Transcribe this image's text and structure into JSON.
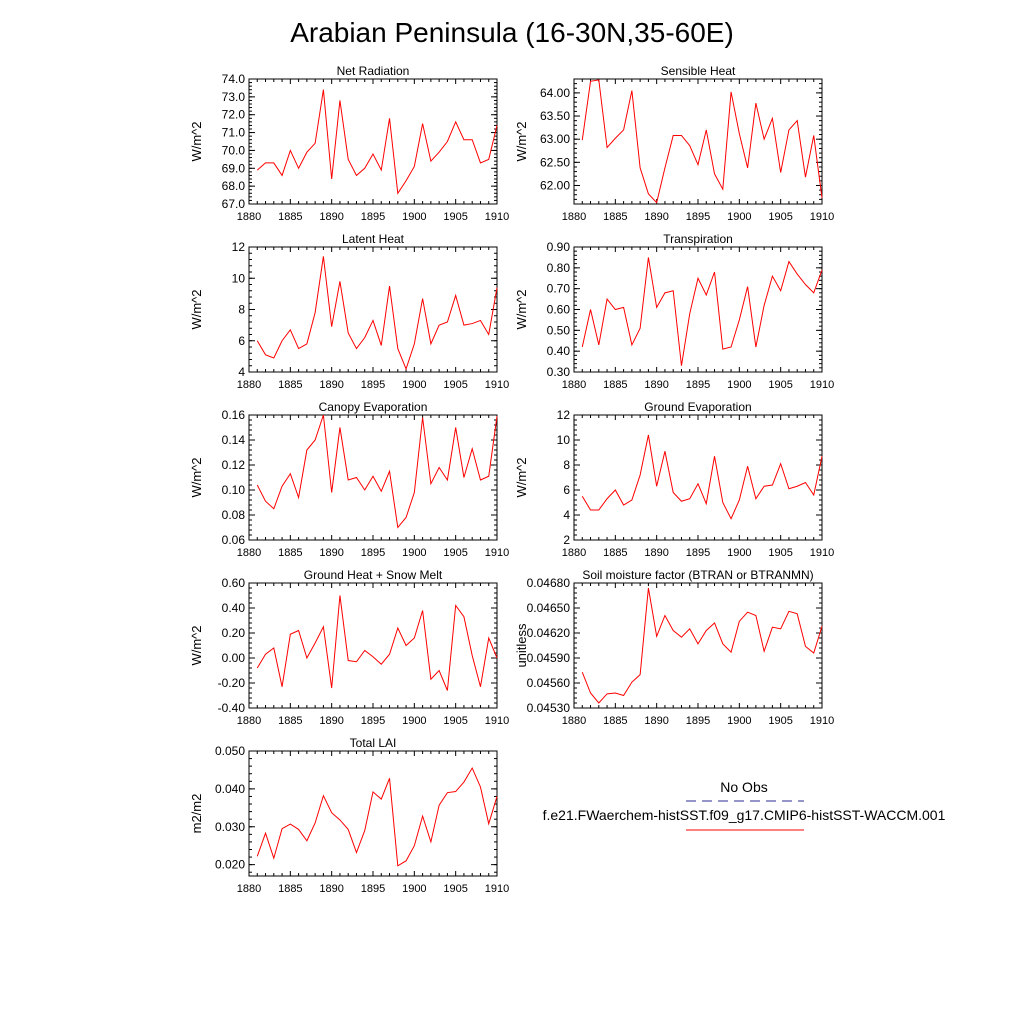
{
  "figure": {
    "title": "Arabian Peninsula (16-30N,35-60E)",
    "legend": {
      "obs_label": "No Obs",
      "obs_color": "#2b2b8f",
      "model_label": "f.e21.FWaerchem-histSST.f09_g17.CMIP6-histSST-WACCM.001",
      "model_color": "#ff0000"
    }
  },
  "chart_data": [
    {
      "type": "line",
      "title": "Net Radiation",
      "ylabel": "W/m^2",
      "xlim": [
        1880,
        1910
      ],
      "xticks": [
        1880,
        1885,
        1890,
        1895,
        1900,
        1905,
        1910
      ],
      "ylim": [
        67.0,
        74.0
      ],
      "yticks": [
        "67.0",
        "68.0",
        "69.0",
        "70.0",
        "71.0",
        "72.0",
        "73.0",
        "74.0"
      ],
      "x": [
        1881,
        1882,
        1883,
        1884,
        1885,
        1886,
        1887,
        1888,
        1889,
        1890,
        1891,
        1892,
        1893,
        1894,
        1895,
        1896,
        1897,
        1898,
        1899,
        1900,
        1901,
        1902,
        1903,
        1904,
        1905,
        1906,
        1907,
        1908,
        1909,
        1910
      ],
      "series": [
        {
          "values": [
            68.9,
            69.3,
            69.3,
            68.6,
            70.0,
            69.0,
            69.9,
            70.4,
            73.4,
            68.4,
            72.8,
            69.5,
            68.6,
            69.0,
            69.8,
            68.9,
            71.8,
            67.6,
            68.3,
            69.1,
            71.5,
            69.4,
            69.9,
            70.5,
            71.6,
            70.6,
            70.6,
            69.3,
            69.5,
            71.4
          ]
        }
      ]
    },
    {
      "type": "line",
      "title": "Sensible Heat",
      "ylabel": "W/m^2",
      "xlim": [
        1880,
        1910
      ],
      "xticks": [
        1880,
        1885,
        1890,
        1895,
        1900,
        1905,
        1910
      ],
      "ylim": [
        61.6,
        64.3
      ],
      "yticks": [
        "62.00",
        "62.50",
        "63.00",
        "63.50",
        "64.00"
      ],
      "x": [
        1881,
        1882,
        1883,
        1884,
        1885,
        1886,
        1887,
        1888,
        1889,
        1890,
        1891,
        1892,
        1893,
        1894,
        1895,
        1896,
        1897,
        1898,
        1899,
        1900,
        1901,
        1902,
        1903,
        1904,
        1905,
        1906,
        1907,
        1908,
        1909,
        1910
      ],
      "series": [
        {
          "values": [
            62.98,
            64.25,
            64.28,
            62.82,
            63.02,
            63.2,
            64.05,
            62.38,
            61.82,
            61.63,
            62.38,
            63.08,
            63.08,
            62.86,
            62.45,
            63.2,
            62.25,
            61.92,
            64.02,
            63.12,
            62.38,
            63.78,
            63.0,
            63.45,
            62.28,
            63.2,
            63.4,
            62.18,
            63.08,
            61.73
          ]
        }
      ]
    },
    {
      "type": "line",
      "title": "Latent Heat",
      "ylabel": "W/m^2",
      "xlim": [
        1880,
        1910
      ],
      "xticks": [
        1880,
        1885,
        1890,
        1895,
        1900,
        1905,
        1910
      ],
      "ylim": [
        4,
        12
      ],
      "yticks": [
        "4",
        "6",
        "8",
        "10",
        "12"
      ],
      "x": [
        1881,
        1882,
        1883,
        1884,
        1885,
        1886,
        1887,
        1888,
        1889,
        1890,
        1891,
        1892,
        1893,
        1894,
        1895,
        1896,
        1897,
        1898,
        1899,
        1900,
        1901,
        1902,
        1903,
        1904,
        1905,
        1906,
        1907,
        1908,
        1909,
        1910
      ],
      "series": [
        {
          "values": [
            6.0,
            5.1,
            4.9,
            6.0,
            6.7,
            5.5,
            5.8,
            7.8,
            11.4,
            6.9,
            9.8,
            6.5,
            5.5,
            6.2,
            7.3,
            5.7,
            9.5,
            5.5,
            4.2,
            5.8,
            8.7,
            5.8,
            7.0,
            7.2,
            8.9,
            7.0,
            7.1,
            7.3,
            6.4,
            9.4
          ]
        }
      ]
    },
    {
      "type": "line",
      "title": "Transpiration",
      "ylabel": "W/m^2",
      "xlim": [
        1880,
        1910
      ],
      "xticks": [
        1880,
        1885,
        1890,
        1895,
        1900,
        1905,
        1910
      ],
      "ylim": [
        0.3,
        0.9
      ],
      "yticks": [
        "0.30",
        "0.40",
        "0.50",
        "0.60",
        "0.70",
        "0.80",
        "0.90"
      ],
      "x": [
        1881,
        1882,
        1883,
        1884,
        1885,
        1886,
        1887,
        1888,
        1889,
        1890,
        1891,
        1892,
        1893,
        1894,
        1895,
        1896,
        1897,
        1898,
        1899,
        1900,
        1901,
        1902,
        1903,
        1904,
        1905,
        1906,
        1907,
        1908,
        1909,
        1910
      ],
      "series": [
        {
          "values": [
            0.42,
            0.6,
            0.43,
            0.65,
            0.6,
            0.61,
            0.43,
            0.51,
            0.85,
            0.61,
            0.68,
            0.69,
            0.33,
            0.58,
            0.75,
            0.67,
            0.78,
            0.41,
            0.42,
            0.55,
            0.71,
            0.42,
            0.62,
            0.76,
            0.69,
            0.83,
            0.77,
            0.72,
            0.68,
            0.79
          ]
        }
      ]
    },
    {
      "type": "line",
      "title": "Canopy Evaporation",
      "ylabel": "W/m^2",
      "xlim": [
        1880,
        1910
      ],
      "xticks": [
        1880,
        1885,
        1890,
        1895,
        1900,
        1905,
        1910
      ],
      "ylim": [
        0.06,
        0.16
      ],
      "yticks": [
        "0.06",
        "0.08",
        "0.10",
        "0.12",
        "0.14",
        "0.16"
      ],
      "x": [
        1881,
        1882,
        1883,
        1884,
        1885,
        1886,
        1887,
        1888,
        1889,
        1890,
        1891,
        1892,
        1893,
        1894,
        1895,
        1896,
        1897,
        1898,
        1899,
        1900,
        1901,
        1902,
        1903,
        1904,
        1905,
        1906,
        1907,
        1908,
        1909,
        1910
      ],
      "series": [
        {
          "values": [
            0.104,
            0.091,
            0.085,
            0.103,
            0.113,
            0.094,
            0.132,
            0.14,
            0.16,
            0.098,
            0.15,
            0.108,
            0.11,
            0.1,
            0.111,
            0.099,
            0.115,
            0.07,
            0.078,
            0.098,
            0.158,
            0.105,
            0.118,
            0.108,
            0.15,
            0.11,
            0.133,
            0.108,
            0.111,
            0.159
          ]
        }
      ]
    },
    {
      "type": "line",
      "title": "Ground Evaporation",
      "ylabel": "W/m^2",
      "xlim": [
        1880,
        1910
      ],
      "xticks": [
        1880,
        1885,
        1890,
        1895,
        1900,
        1905,
        1910
      ],
      "ylim": [
        2,
        12
      ],
      "yticks": [
        "2",
        "4",
        "6",
        "8",
        "10",
        "12"
      ],
      "x": [
        1881,
        1882,
        1883,
        1884,
        1885,
        1886,
        1887,
        1888,
        1889,
        1890,
        1891,
        1892,
        1893,
        1894,
        1895,
        1896,
        1897,
        1898,
        1899,
        1900,
        1901,
        1902,
        1903,
        1904,
        1905,
        1906,
        1907,
        1908,
        1909,
        1910
      ],
      "series": [
        {
          "values": [
            5.5,
            4.4,
            4.4,
            5.3,
            6.0,
            4.8,
            5.2,
            7.2,
            10.4,
            6.3,
            9.1,
            5.8,
            5.1,
            5.3,
            6.5,
            4.9,
            8.7,
            5.0,
            3.7,
            5.2,
            7.9,
            5.3,
            6.3,
            6.4,
            8.1,
            6.1,
            6.3,
            6.6,
            5.6,
            8.7
          ]
        }
      ]
    },
    {
      "type": "line",
      "title": "Ground Heat + Snow Melt",
      "ylabel": "W/m^2",
      "xlim": [
        1880,
        1910
      ],
      "xticks": [
        1880,
        1885,
        1890,
        1895,
        1900,
        1905,
        1910
      ],
      "ylim": [
        -0.4,
        0.6
      ],
      "yticks": [
        "-0.40",
        "-0.20",
        "0.00",
        "0.20",
        "0.40",
        "0.60"
      ],
      "x": [
        1881,
        1882,
        1883,
        1884,
        1885,
        1886,
        1887,
        1888,
        1889,
        1890,
        1891,
        1892,
        1893,
        1894,
        1895,
        1896,
        1897,
        1898,
        1899,
        1900,
        1901,
        1902,
        1903,
        1904,
        1905,
        1906,
        1907,
        1908,
        1909,
        1910
      ],
      "series": [
        {
          "values": [
            -0.08,
            0.03,
            0.08,
            -0.23,
            0.19,
            0.22,
            0.0,
            0.12,
            0.25,
            -0.24,
            0.5,
            -0.02,
            -0.03,
            0.06,
            0.01,
            -0.05,
            0.03,
            0.24,
            0.1,
            0.16,
            0.38,
            -0.17,
            -0.1,
            -0.26,
            0.42,
            0.33,
            0.02,
            -0.23,
            0.16,
            0.0
          ]
        }
      ]
    },
    {
      "type": "line",
      "title": "Soil moisture factor (BTRAN or BTRANMN)",
      "ylabel": "unitless",
      "xlim": [
        1880,
        1910
      ],
      "xticks": [
        1880,
        1885,
        1890,
        1895,
        1900,
        1905,
        1910
      ],
      "ylim": [
        0.0453,
        0.0468
      ],
      "yticks": [
        "0.04530",
        "0.04560",
        "0.04590",
        "0.04620",
        "0.04650",
        "0.04680"
      ],
      "x": [
        1881,
        1882,
        1883,
        1884,
        1885,
        1886,
        1887,
        1888,
        1889,
        1890,
        1891,
        1892,
        1893,
        1894,
        1895,
        1896,
        1897,
        1898,
        1899,
        1900,
        1901,
        1902,
        1903,
        1904,
        1905,
        1906,
        1907,
        1908,
        1909,
        1910
      ],
      "series": [
        {
          "values": [
            0.04573,
            0.04548,
            0.04536,
            0.04547,
            0.04548,
            0.04545,
            0.04561,
            0.0457,
            0.04674,
            0.04616,
            0.04641,
            0.04623,
            0.04615,
            0.04625,
            0.04607,
            0.04623,
            0.04632,
            0.04607,
            0.04597,
            0.04634,
            0.04645,
            0.04641,
            0.04598,
            0.04627,
            0.04625,
            0.04646,
            0.04643,
            0.04604,
            0.04596,
            0.04628
          ]
        }
      ]
    },
    {
      "type": "line",
      "title": "Total LAI",
      "ylabel": "m2/m2",
      "xlim": [
        1880,
        1910
      ],
      "xticks": [
        1880,
        1885,
        1890,
        1895,
        1900,
        1905,
        1910
      ],
      "ylim": [
        0.017,
        0.05
      ],
      "yticks": [
        "0.020",
        "0.030",
        "0.040",
        "0.050"
      ],
      "x": [
        1881,
        1882,
        1883,
        1884,
        1885,
        1886,
        1887,
        1888,
        1889,
        1890,
        1891,
        1892,
        1893,
        1894,
        1895,
        1896,
        1897,
        1898,
        1899,
        1900,
        1901,
        1902,
        1903,
        1904,
        1905,
        1906,
        1907,
        1908,
        1909,
        1910
      ],
      "series": [
        {
          "values": [
            0.0222,
            0.0283,
            0.0217,
            0.0295,
            0.0307,
            0.0293,
            0.0263,
            0.031,
            0.0382,
            0.0337,
            0.0318,
            0.0293,
            0.0232,
            0.029,
            0.0392,
            0.0373,
            0.0428,
            0.0197,
            0.021,
            0.025,
            0.0328,
            0.026,
            0.0357,
            0.039,
            0.0393,
            0.0418,
            0.0455,
            0.0405,
            0.0308,
            0.038
          ]
        }
      ]
    }
  ]
}
